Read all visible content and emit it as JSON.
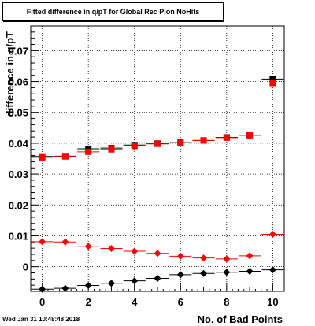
{
  "title": "Fitted difference in q/pT for Global Rec Pion NoHits",
  "timestamp": "Wed Jan 31 10:48:48 2018",
  "chart_data": {
    "type": "scatter",
    "xlabel": "No. of Bad Points",
    "ylabel": "difference in q/pT",
    "xlim": [
      -0.5,
      10.5
    ],
    "ylim": [
      -0.008,
      0.078
    ],
    "x_ticks": [
      0,
      2,
      4,
      6,
      8,
      10
    ],
    "x_tick_labels": [
      "0",
      "2",
      "4",
      "6",
      "8",
      "10"
    ],
    "y_ticks": [
      0,
      0.01,
      0.02,
      0.03,
      0.04,
      0.05,
      0.06,
      0.07
    ],
    "y_tick_labels": [
      "0",
      "0.01",
      "0.02",
      "0.03",
      "0.04",
      "0.05",
      "0.06",
      "0.07"
    ],
    "grid": true,
    "series": [
      {
        "marker": "square",
        "color": "#000000",
        "x": [
          0,
          1,
          2,
          3,
          4,
          5,
          6,
          7,
          8,
          9,
          10
        ],
        "y": [
          0.0357,
          0.0358,
          0.0382,
          0.0384,
          0.0394,
          0.0399,
          0.0402,
          0.0409,
          0.0419,
          0.0426,
          0.0608
        ]
      },
      {
        "marker": "square",
        "color": "#ff0000",
        "x": [
          0,
          1,
          2,
          3,
          4,
          5,
          6,
          7,
          8,
          9,
          10
        ],
        "y": [
          0.0354,
          0.0357,
          0.0372,
          0.038,
          0.0391,
          0.0398,
          0.0401,
          0.0409,
          0.0418,
          0.0426,
          0.0595
        ]
      },
      {
        "marker": "diamond",
        "color": "#ff0000",
        "x": [
          0,
          1,
          2,
          3,
          4,
          5,
          6,
          7,
          8,
          9,
          10
        ],
        "y": [
          0.0081,
          0.008,
          0.0066,
          0.0059,
          0.005,
          0.0043,
          0.0034,
          0.0028,
          0.0025,
          0.0035,
          0.0105
        ]
      },
      {
        "marker": "diamond",
        "color": "#000000",
        "x": [
          0,
          1,
          2,
          3,
          4,
          5,
          6,
          7,
          8,
          9,
          10
        ],
        "y": [
          -0.0073,
          -0.007,
          -0.0061,
          -0.0054,
          -0.0046,
          -0.0038,
          -0.0026,
          -0.0022,
          -0.0018,
          -0.0015,
          -0.001
        ]
      }
    ]
  }
}
